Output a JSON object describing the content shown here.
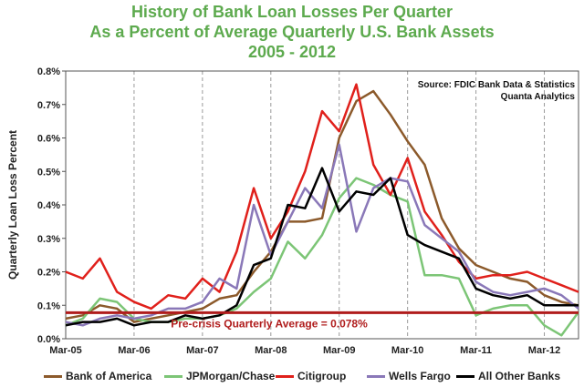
{
  "chart_data": {
    "type": "line",
    "title": "History of Bank Loan Losses Per Quarter",
    "subtitle": "As a Percent of Average Quarterly U.S. Bank Assets",
    "subtitle2": "2005 - 2012",
    "ylabel": "Quarterly Loan Loss Percent",
    "xlabel": "",
    "ylim": [
      0,
      0.8
    ],
    "xlim": [
      0,
      30
    ],
    "grid": "vertical",
    "legend_position": "bottom",
    "source": "Source: FDIC Bank Data & Statistics",
    "source2": "Quanta Analytics",
    "yticks": [
      "0.0%",
      "0.1%",
      "0.2%",
      "0.3%",
      "0.4%",
      "0.5%",
      "0.6%",
      "0.7%",
      "0.8%"
    ],
    "yticks_values": [
      0,
      0.1,
      0.2,
      0.3,
      0.4,
      0.5,
      0.6,
      0.7,
      0.8
    ],
    "xticks": [
      "Mar-05",
      "Mar-06",
      "Mar-07",
      "Mar-08",
      "Mar-09",
      "Mar-10",
      "Mar-11",
      "Mar-12"
    ],
    "xticks_index": [
      0,
      4,
      8,
      12,
      16,
      20,
      24,
      28
    ],
    "reference_line": {
      "value": 0.078,
      "label": "Pre-crisis Quarterly Average = 0.078%",
      "color": "#b01c1c"
    },
    "x": [
      "Mar-05",
      "Jun-05",
      "Sep-05",
      "Dec-05",
      "Mar-06",
      "Jun-06",
      "Sep-06",
      "Dec-06",
      "Mar-07",
      "Jun-07",
      "Sep-07",
      "Dec-07",
      "Mar-08",
      "Jun-08",
      "Sep-08",
      "Dec-08",
      "Mar-09",
      "Jun-09",
      "Sep-09",
      "Dec-09",
      "Mar-10",
      "Jun-10",
      "Sep-10",
      "Dec-10",
      "Mar-11",
      "Jun-11",
      "Sep-11",
      "Dec-11",
      "Mar-12",
      "Jun-12",
      "Sep-12"
    ],
    "series": [
      {
        "name": "Bank of America",
        "color": "#8c5a2b",
        "values": [
          0.06,
          0.07,
          0.1,
          0.09,
          0.05,
          0.06,
          0.07,
          0.08,
          0.09,
          0.12,
          0.13,
          0.2,
          0.26,
          0.35,
          0.35,
          0.36,
          0.6,
          0.71,
          0.74,
          0.67,
          0.59,
          0.52,
          0.36,
          0.27,
          0.22,
          0.2,
          0.18,
          0.17,
          0.13,
          0.11,
          0.1
        ]
      },
      {
        "name": "JPMorgan/Chase",
        "color": "#7cc576",
        "values": [
          0.04,
          0.06,
          0.12,
          0.11,
          0.06,
          0.05,
          0.05,
          0.06,
          0.06,
          0.07,
          0.09,
          0.14,
          0.18,
          0.29,
          0.24,
          0.31,
          0.42,
          0.48,
          0.46,
          0.43,
          0.41,
          0.19,
          0.19,
          0.18,
          0.07,
          0.09,
          0.1,
          0.1,
          0.04,
          0.01,
          0.08
        ]
      },
      {
        "name": "Citigroup",
        "color": "#e0201b",
        "values": [
          0.2,
          0.18,
          0.24,
          0.14,
          0.11,
          0.09,
          0.13,
          0.12,
          0.18,
          0.14,
          0.26,
          0.45,
          0.3,
          0.38,
          0.5,
          0.68,
          0.62,
          0.76,
          0.52,
          0.43,
          0.54,
          0.38,
          0.31,
          0.23,
          0.18,
          0.19,
          0.19,
          0.2,
          0.18,
          0.16,
          0.14
        ]
      },
      {
        "name": "Wells Fargo",
        "color": "#8a78b8",
        "values": [
          0.05,
          0.04,
          0.06,
          0.07,
          0.06,
          0.07,
          0.09,
          0.09,
          0.11,
          0.18,
          0.15,
          0.4,
          0.25,
          0.35,
          0.45,
          0.39,
          0.58,
          0.32,
          0.45,
          0.48,
          0.47,
          0.34,
          0.3,
          0.26,
          0.17,
          0.14,
          0.13,
          0.14,
          0.15,
          0.13,
          0.09
        ]
      },
      {
        "name": "All Other Banks",
        "color": "#000000",
        "values": [
          0.04,
          0.05,
          0.05,
          0.06,
          0.04,
          0.05,
          0.05,
          0.07,
          0.06,
          0.07,
          0.1,
          0.22,
          0.24,
          0.4,
          0.39,
          0.51,
          0.38,
          0.44,
          0.43,
          0.48,
          0.31,
          0.28,
          0.26,
          0.24,
          0.15,
          0.13,
          0.12,
          0.13,
          0.1,
          0.1,
          0.1
        ]
      }
    ]
  }
}
